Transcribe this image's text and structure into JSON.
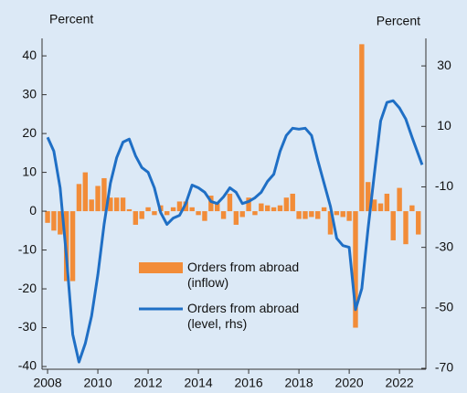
{
  "chart_data": {
    "type": "bar-line",
    "y_label": "Percent",
    "y2_label": "Percent",
    "xlim": [
      2007.78,
      2023.05
    ],
    "xticks": [
      2008,
      2010,
      2012,
      2014,
      2016,
      2018,
      2020,
      2022
    ],
    "ylim": [
      -40.7,
      44.5
    ],
    "yticks": [
      -40,
      -30,
      -20,
      -10,
      0,
      10,
      20,
      30,
      40
    ],
    "y2lim": [
      -70.3,
      39.1
    ],
    "y2ticks": [
      -70,
      -50,
      -30,
      -10,
      10,
      30
    ],
    "series": [
      {
        "name": "Orders from abroad (inflow)",
        "type": "bar",
        "color": "#f28c38",
        "x": [
          2008,
          2008.25,
          2008.5,
          2008.75,
          2009,
          2009.25,
          2009.5,
          2009.75,
          2010,
          2010.25,
          2010.5,
          2010.75,
          2011,
          2011.25,
          2011.5,
          2011.75,
          2012,
          2012.25,
          2012.5,
          2012.75,
          2013,
          2013.25,
          2013.5,
          2013.75,
          2014,
          2014.25,
          2014.5,
          2014.75,
          2015,
          2015.25,
          2015.5,
          2015.75,
          2016,
          2016.25,
          2016.5,
          2016.75,
          2017,
          2017.25,
          2017.5,
          2017.75,
          2018,
          2018.25,
          2018.5,
          2018.75,
          2019,
          2019.25,
          2019.5,
          2019.75,
          2020,
          2020.25,
          2020.5,
          2020.75,
          2021,
          2021.25,
          2021.5,
          2021.75,
          2022,
          2022.25,
          2022.5,
          2022.75
        ],
        "values": [
          -3,
          -5,
          -6,
          -18,
          -18,
          7,
          10,
          3,
          6.5,
          8.5,
          3.5,
          3.5,
          3.5,
          0.5,
          -3.5,
          -2,
          1,
          -1,
          1.5,
          -1,
          1,
          2.5,
          2.5,
          1,
          -1,
          -2.5,
          4,
          2,
          -2,
          4.5,
          -3.5,
          -1.5,
          3.5,
          -1,
          2,
          1.5,
          1,
          1.5,
          3.5,
          4.5,
          -2,
          -2,
          -1.5,
          -2,
          1,
          -6,
          -1,
          -1.5,
          -2.5,
          -30,
          43,
          7.5,
          3,
          2,
          4.5,
          -7.5,
          6,
          -8.5,
          1.5,
          -6
        ]
      },
      {
        "name": "Orders from abroad (level, rhs)",
        "type": "line",
        "axis": "y2",
        "color": "#1f6fc5",
        "x": [
          2008,
          2008.25,
          2008.5,
          2008.75,
          2009,
          2009.25,
          2009.5,
          2009.75,
          2010,
          2010.25,
          2010.5,
          2010.75,
          2011,
          2011.25,
          2011.5,
          2011.75,
          2012,
          2012.25,
          2012.5,
          2012.75,
          2013,
          2013.25,
          2013.5,
          2013.75,
          2014,
          2014.25,
          2014.5,
          2014.75,
          2015,
          2015.25,
          2015.5,
          2015.75,
          2016,
          2016.25,
          2016.5,
          2016.75,
          2017,
          2017.25,
          2017.5,
          2017.75,
          2018,
          2018.25,
          2018.5,
          2018.75,
          2019,
          2019.25,
          2019.5,
          2019.75,
          2020,
          2020.25,
          2020.5,
          2020.75,
          2021,
          2021.25,
          2021.5,
          2021.75,
          2022,
          2022.25,
          2022.5,
          2022.9
        ],
        "values": [
          6.4,
          1.8,
          -10.3,
          -33,
          -58.8,
          -67.9,
          -61.8,
          -52.7,
          -39,
          -22.4,
          -8.8,
          -0.3,
          4.8,
          5.8,
          0.3,
          -3.6,
          -5.2,
          -10.3,
          -18.5,
          -22.4,
          -20.3,
          -19.4,
          -15.5,
          -9.4,
          -10.3,
          -11.8,
          -14.8,
          -15.5,
          -13.3,
          -10.3,
          -11.8,
          -15.5,
          -14.8,
          -13.6,
          -11.8,
          -8.2,
          -5.8,
          1.8,
          7,
          9.4,
          9.1,
          9.4,
          7,
          -1.2,
          -8.8,
          -16.4,
          -27,
          -29.4,
          -30,
          -50.6,
          -43.6,
          -23.9,
          -5.8,
          11.8,
          17.9,
          18.5,
          16.1,
          12.4,
          6.4,
          -2.7
        ]
      }
    ]
  }
}
